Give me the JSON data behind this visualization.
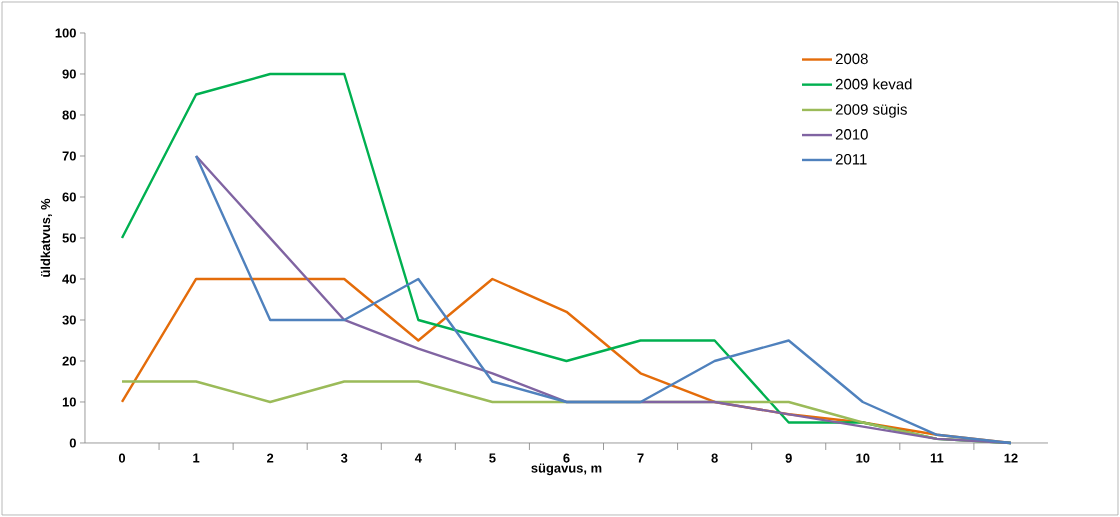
{
  "chart_data": {
    "type": "line",
    "xlabel": "sügavus, m",
    "ylabel": "üldkatvus, %",
    "categories": [
      "0",
      "1",
      "2",
      "3",
      "4",
      "5",
      "6",
      "7",
      "8",
      "9",
      "10",
      "11",
      "12"
    ],
    "series": [
      {
        "name": "2008",
        "color": "#e46c0a",
        "values": [
          10,
          40,
          40,
          40,
          25,
          40,
          32,
          17,
          10,
          7,
          5,
          2,
          0
        ]
      },
      {
        "name": "2009 kevad",
        "color": "#00b050",
        "values": [
          50,
          85,
          90,
          90,
          30,
          25,
          20,
          25,
          25,
          5,
          5,
          1,
          0
        ]
      },
      {
        "name": "2009 sügis",
        "color": "#9bbb59",
        "values": [
          15,
          15,
          10,
          15,
          15,
          10,
          10,
          10,
          10,
          10,
          5,
          1,
          0
        ]
      },
      {
        "name": "2010",
        "color": "#8064a2",
        "values": [
          null,
          70,
          50,
          30,
          23,
          17,
          10,
          10,
          10,
          7,
          4,
          1,
          0
        ]
      },
      {
        "name": "2011",
        "color": "#4f81bd",
        "values": [
          null,
          70,
          30,
          30,
          40,
          15,
          10,
          10,
          20,
          25,
          10,
          2,
          0
        ]
      }
    ],
    "ylim": [
      0,
      100
    ],
    "yticks": [
      0,
      10,
      20,
      30,
      40,
      50,
      60,
      70,
      80,
      90,
      100
    ],
    "legend": "top right"
  }
}
